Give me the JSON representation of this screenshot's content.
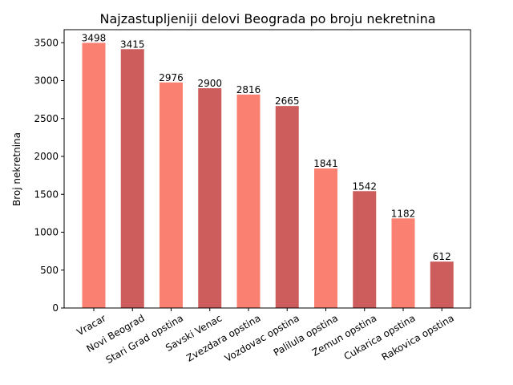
{
  "chart_data": {
    "type": "bar",
    "title": "Najzastupljeniji delovi Beograda po broju nekretnina",
    "xlabel": "",
    "ylabel": "Broj nekretnina",
    "categories": [
      "Vracar",
      "Novi Beograd",
      "Stari Grad opstina",
      "Savski Venac",
      "Zvezdara opstina",
      "Vozdovac opstina",
      "Palilula opstina",
      "Zemun opstina",
      "Cukarica opstina",
      "Rakovica opstina"
    ],
    "values": [
      3498,
      3415,
      2976,
      2900,
      2816,
      2665,
      1841,
      1542,
      1182,
      612
    ],
    "value_labels": [
      "3498",
      "3415",
      "2976",
      "2900",
      "2816",
      "2665",
      "1841",
      "1542",
      "1182",
      "612"
    ],
    "ylim": [
      0,
      3672
    ],
    "yticks": [
      0,
      500,
      1000,
      1500,
      2000,
      2500,
      3000,
      3500
    ],
    "ytick_labels": [
      "0",
      "500",
      "1000",
      "1500",
      "2000",
      "2500",
      "3000",
      "3500"
    ],
    "bar_colors": [
      "#fa8072",
      "#cd5c5c"
    ],
    "grid": false,
    "legend": "none"
  }
}
